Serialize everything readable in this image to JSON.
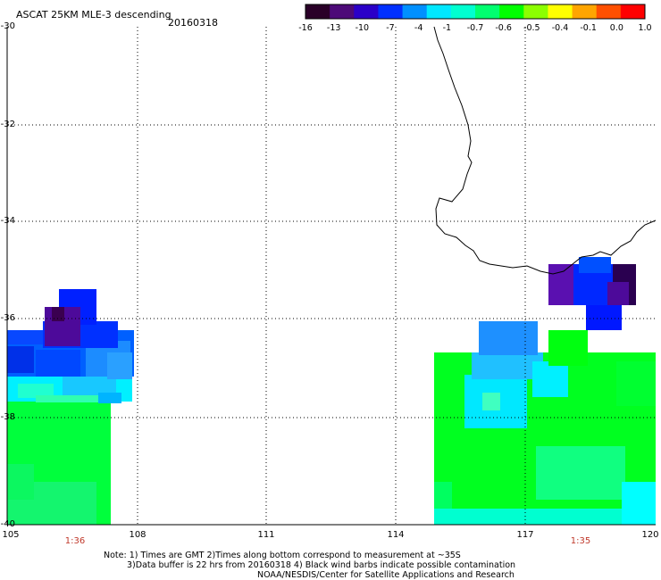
{
  "header": {
    "title": "ASCAT 25KM MLE-3 descending",
    "date": "20160318"
  },
  "colorbar": {
    "labels": [
      "-16",
      "-13",
      "-10",
      "-7",
      "-4",
      "-1",
      "-0.7",
      "-0.6",
      "-0.5",
      "-0.4",
      "-0.1",
      "0.0",
      "1.0"
    ],
    "colors": [
      "#2a0028",
      "#4d0a78",
      "#2b00c8",
      "#0030ff",
      "#0090ff",
      "#00e8ff",
      "#00ffd0",
      "#00ff70",
      "#00ff00",
      "#8cff00",
      "#ffff00",
      "#ffa500",
      "#ff5000",
      "#ff0000"
    ]
  },
  "axes": {
    "lat_labels": [
      "-30",
      "-32",
      "-34",
      "-36",
      "-38",
      "-40"
    ],
    "lon_labels": [
      "105",
      "108",
      "111",
      "114",
      "117",
      "120"
    ]
  },
  "pass_times": {
    "left": "1:36",
    "right": "1:35"
  },
  "notes": {
    "line1": "Note: 1) Times are GMT 2)Times along bottom correspond to measurement at ~35S",
    "line2": "3)Data buffer is 22 hrs from 20160318 4) Black wind barbs indicate possible contamination",
    "line3": "NOAA/NESDIS/Center for Satellite Applications and Research"
  }
}
